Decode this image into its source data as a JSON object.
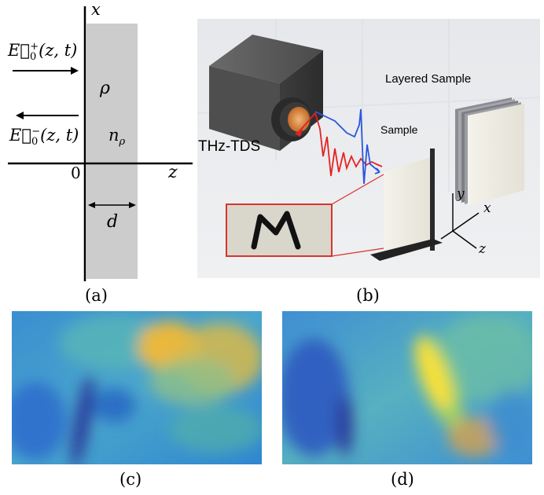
{
  "panel_a": {
    "axis_x_label": "x",
    "axis_z_label": "z",
    "origin_label": "0",
    "incident_field": "E⃗0+(z,t)",
    "incident_base": "E⃗",
    "incident_sub": "0",
    "incident_sup": "+",
    "incident_arg": "(z, t)",
    "reflected_base": "E⃗",
    "reflected_sub": "0",
    "reflected_sup": "−",
    "reflected_arg": "(z, t)",
    "rho_label": "ρ",
    "n_label": "n",
    "n_sub": "ρ",
    "thickness_label": "d",
    "caption": "(a)"
  },
  "panel_b": {
    "source_label": "THz-TDS",
    "sample_label": "Sample",
    "layered_label": "Layered Sample",
    "inset_letter": "M",
    "axis_x": "x",
    "axis_y": "y",
    "axis_z": "z",
    "caption": "(b)"
  },
  "panel_c": {
    "caption": "(c)"
  },
  "panel_d": {
    "caption": "(d)"
  },
  "colors": {
    "slab": "#cccccc",
    "render_bg": "#e9ebee",
    "pulse_red": "#e52222",
    "pulse_blue": "#2c56e0",
    "inset_border": "#d9342b",
    "map_low": "#2b3a9a",
    "map_mid": "#2f9bd0",
    "map_high": "#f5c53a"
  }
}
